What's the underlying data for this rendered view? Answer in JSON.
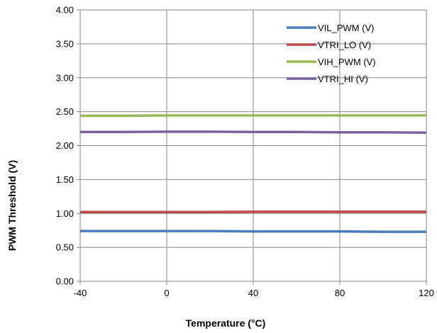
{
  "chart_data": {
    "type": "line",
    "title": "",
    "xlabel": "Temperature (°C)",
    "ylabel": "PWM Threshold (V)",
    "xlim": [
      -40,
      120
    ],
    "ylim": [
      0,
      4
    ],
    "x_ticks": [
      "-40",
      "0",
      "40",
      "80",
      "120"
    ],
    "y_ticks": [
      "0.00",
      "0.50",
      "1.00",
      "1.50",
      "2.00",
      "2.50",
      "3.00",
      "3.50",
      "4.00"
    ],
    "grid": true,
    "legend_position": "top-right",
    "x": [
      -40,
      -20,
      0,
      20,
      40,
      60,
      80,
      100,
      120
    ],
    "series": [
      {
        "name": "VIL_PWM (V)",
        "color": "#4a7ebb",
        "values": [
          0.74,
          0.74,
          0.74,
          0.74,
          0.735,
          0.735,
          0.735,
          0.73,
          0.73
        ]
      },
      {
        "name": "VTRI_LO (V)",
        "color": "#be4b48",
        "values": [
          1.02,
          1.02,
          1.02,
          1.02,
          1.025,
          1.025,
          1.025,
          1.025,
          1.025
        ]
      },
      {
        "name": "VIH_PWM (V)",
        "color": "#98b954",
        "values": [
          2.44,
          2.44,
          2.445,
          2.445,
          2.445,
          2.445,
          2.445,
          2.445,
          2.445
        ]
      },
      {
        "name": "VTRI_HI (V)",
        "color": "#7d60a0",
        "values": [
          2.2,
          2.2,
          2.205,
          2.205,
          2.2,
          2.2,
          2.195,
          2.195,
          2.19
        ]
      }
    ]
  }
}
